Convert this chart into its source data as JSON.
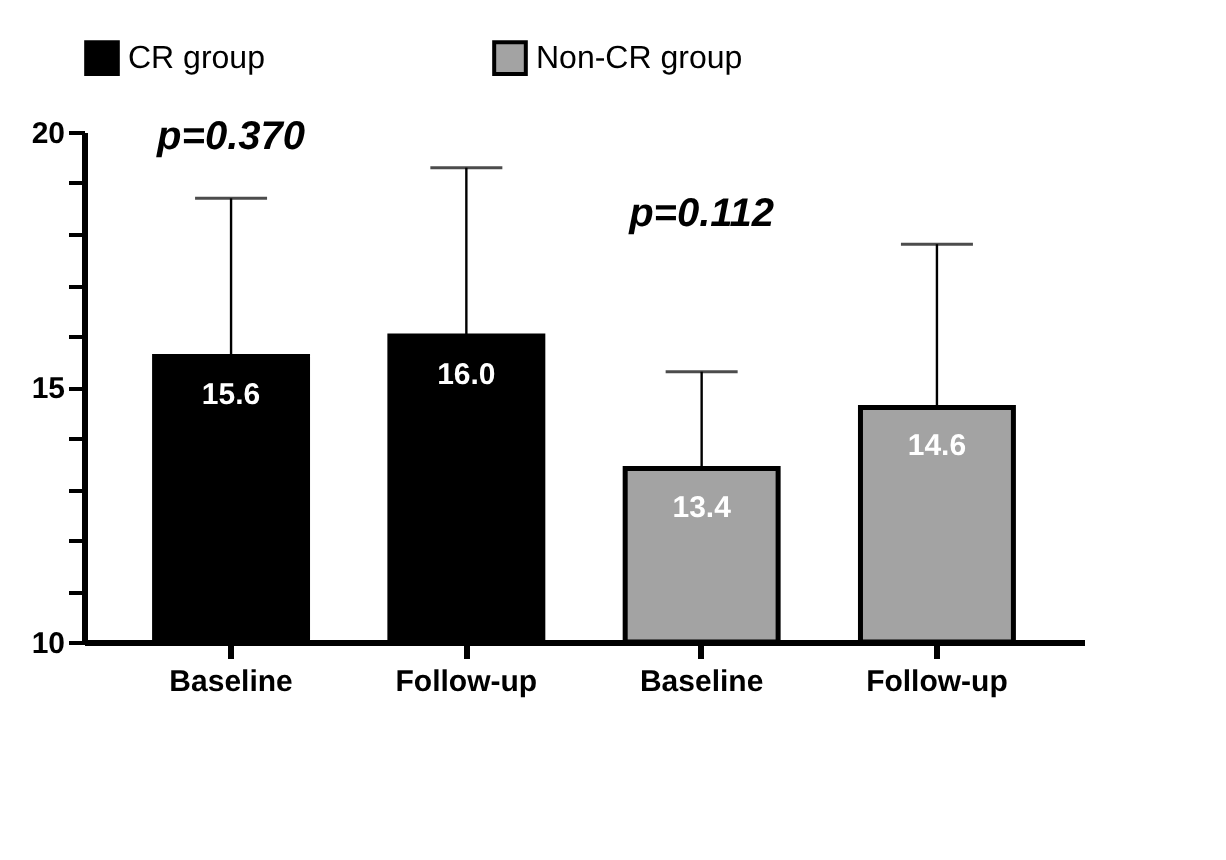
{
  "chart_data": {
    "type": "bar",
    "categories": [
      "Baseline",
      "Follow-up",
      "Baseline",
      "Follow-up"
    ],
    "series": [
      {
        "name": "CR group",
        "color": "#000000",
        "values": [
          15.6,
          16.0,
          null,
          null
        ],
        "errors": [
          [
            15.6,
            18.7
          ],
          [
            16.0,
            19.3
          ],
          null,
          null
        ],
        "value_labels": [
          "15.6",
          "16.0",
          null,
          null
        ]
      },
      {
        "name": "Non-CR group",
        "color": "#a3a3a3",
        "values": [
          null,
          null,
          13.4,
          14.6
        ],
        "errors": [
          null,
          null,
          [
            13.4,
            15.3
          ],
          [
            14.6,
            17.8
          ]
        ],
        "value_labels": [
          null,
          null,
          "13.4",
          "14.6"
        ]
      }
    ],
    "ylim": [
      10,
      20
    ],
    "yticks": [
      10,
      {
        "value": 11,
        "label": null
      },
      {
        "value": 12,
        "label": null
      },
      {
        "value": 13,
        "label": null
      },
      {
        "value": 14,
        "label": null
      },
      15,
      {
        "value": 16,
        "label": null
      },
      {
        "value": 17,
        "label": null
      },
      {
        "value": 18,
        "label": null
      },
      {
        "value": 19,
        "label": null
      },
      20
    ],
    "annotations": [
      "p=0.370",
      "p=0.112"
    ],
    "legend": "top",
    "grid": false
  }
}
